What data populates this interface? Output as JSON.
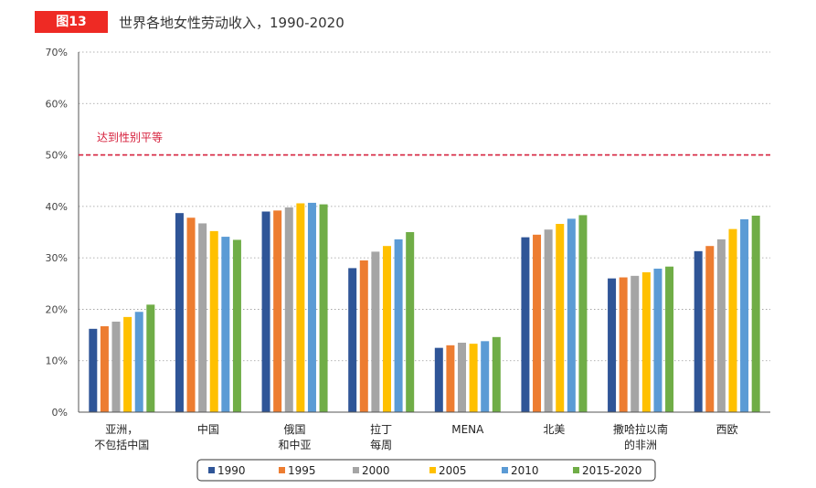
{
  "figure": {
    "badge": "图13",
    "title": "世界各地女性劳动收入，1990-2020"
  },
  "chart_data": {
    "type": "bar",
    "title": "世界各地女性劳动收入，1990-2020",
    "ylim": [
      0,
      70
    ],
    "yticks": [
      "0%",
      "10%",
      "20%",
      "30%",
      "40%",
      "50%",
      "60%",
      "70%"
    ],
    "grid": "horizontal-dotted",
    "legend_position": "bottom",
    "reference_line": {
      "value": 50,
      "label": "达到性别平等",
      "color": "#d6203c"
    },
    "categories": [
      [
        "亚洲，",
        "不包括中国"
      ],
      [
        "中国"
      ],
      [
        "俄国",
        "和中亚"
      ],
      [
        "拉丁",
        "每周"
      ],
      [
        "MENA"
      ],
      [
        "北美"
      ],
      [
        "撒哈拉以南",
        "的非洲"
      ],
      [
        "西欧"
      ]
    ],
    "series": [
      {
        "name": "1990",
        "color": "#2f5597",
        "values": [
          16.2,
          38.7,
          39.0,
          28.0,
          12.5,
          34.0,
          26.0,
          31.3
        ]
      },
      {
        "name": "1995",
        "color": "#ed7d31",
        "values": [
          16.7,
          37.8,
          39.2,
          29.5,
          13.0,
          34.5,
          26.2,
          32.3
        ]
      },
      {
        "name": "2000",
        "color": "#a5a5a5",
        "values": [
          17.6,
          36.7,
          39.8,
          31.2,
          13.5,
          35.5,
          26.5,
          33.6
        ]
      },
      {
        "name": "2005",
        "color": "#ffc000",
        "values": [
          18.5,
          35.2,
          40.6,
          32.3,
          13.3,
          36.6,
          27.2,
          35.6
        ]
      },
      {
        "name": "2010",
        "color": "#5b9bd5",
        "values": [
          19.5,
          34.1,
          40.7,
          33.6,
          13.8,
          37.6,
          27.9,
          37.5
        ]
      },
      {
        "name": "2015-2020",
        "color": "#70ad47",
        "values": [
          20.9,
          33.5,
          40.4,
          35.0,
          14.6,
          38.3,
          28.3,
          38.2
        ]
      }
    ]
  }
}
